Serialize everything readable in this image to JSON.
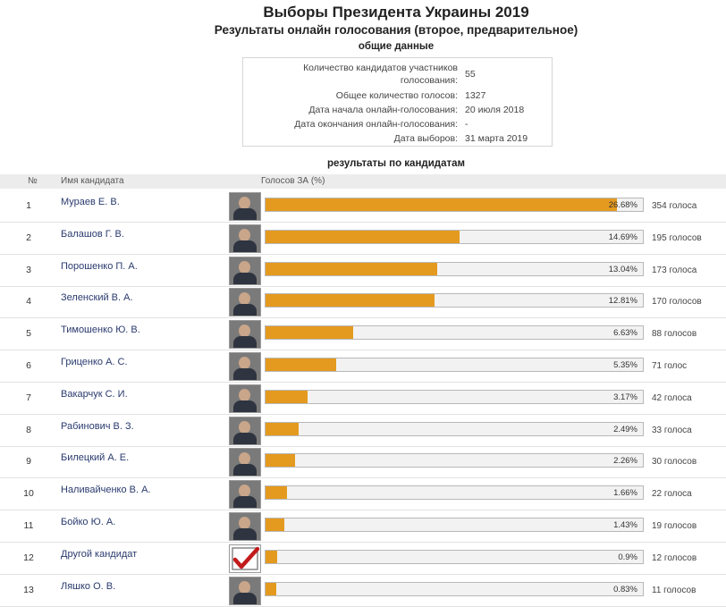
{
  "title": "Выборы Президента Украины 2019",
  "subtitle": "Результаты онлайн голосования (второе, предварительное)",
  "summary": {
    "heading": "общие данные",
    "rows": [
      {
        "label": "Количество кандидатов участников голосования:",
        "value": "55"
      },
      {
        "label": "Общее количество голосов:",
        "value": "1327"
      },
      {
        "label": "Дата начала онлайн-голосования:",
        "value": "20 июля 2018"
      },
      {
        "label": "Дата окончания онлайн-голосования:",
        "value": "-"
      },
      {
        "label": "Дата выборов:",
        "value": "31 марта 2019"
      }
    ]
  },
  "results": {
    "heading": "результаты по кандидатам",
    "columns": {
      "num": "№",
      "name": "Имя кандидата",
      "votes": "Голосов ЗА (%)"
    },
    "rows": [
      {
        "num": "1",
        "name": "Мураев Е. В.",
        "pct": 26.68,
        "pct_text": "26.68%",
        "votes": "354 голоса",
        "photo": "candidate-photo"
      },
      {
        "num": "2",
        "name": "Балашов Г. В.",
        "pct": 14.69,
        "pct_text": "14.69%",
        "votes": "195 голосов",
        "photo": "candidate-photo"
      },
      {
        "num": "3",
        "name": "Порошенко П. А.",
        "pct": 13.04,
        "pct_text": "13.04%",
        "votes": "173 голоса",
        "photo": "candidate-photo"
      },
      {
        "num": "4",
        "name": "Зеленский В. А.",
        "pct": 12.81,
        "pct_text": "12.81%",
        "votes": "170 голосов",
        "photo": "candidate-photo"
      },
      {
        "num": "5",
        "name": "Тимошенко Ю. В.",
        "pct": 6.63,
        "pct_text": "6.63%",
        "votes": "88 голосов",
        "photo": "candidate-photo"
      },
      {
        "num": "6",
        "name": "Гриценко А. С.",
        "pct": 5.35,
        "pct_text": "5.35%",
        "votes": "71 голос",
        "photo": "candidate-photo"
      },
      {
        "num": "7",
        "name": "Вакарчук С. И.",
        "pct": 3.17,
        "pct_text": "3.17%",
        "votes": "42 голоса",
        "photo": "candidate-photo"
      },
      {
        "num": "8",
        "name": "Рабинович В. З.",
        "pct": 2.49,
        "pct_text": "2.49%",
        "votes": "33 голоса",
        "photo": "candidate-photo"
      },
      {
        "num": "9",
        "name": "Билецкий А. Е.",
        "pct": 2.26,
        "pct_text": "2.26%",
        "votes": "30 голосов",
        "photo": "candidate-photo"
      },
      {
        "num": "10",
        "name": "Наливайченко В. А.",
        "pct": 1.66,
        "pct_text": "1.66%",
        "votes": "22 голоса",
        "photo": "candidate-photo"
      },
      {
        "num": "11",
        "name": "Бойко Ю. А.",
        "pct": 1.43,
        "pct_text": "1.43%",
        "votes": "19 голосов",
        "photo": "candidate-photo"
      },
      {
        "num": "12",
        "name": "Другой кандидат",
        "pct": 0.9,
        "pct_text": "0.9%",
        "votes": "12 голосов",
        "photo": "checkmark-icon"
      },
      {
        "num": "13",
        "name": "Ляшко О. В.",
        "pct": 0.83,
        "pct_text": "0.83%",
        "votes": "11 голосов",
        "photo": "candidate-photo"
      }
    ]
  },
  "colors": {
    "bar_fill": "#e49a1f",
    "bar_track": "#f2f2f2",
    "name_link": "#2a3a6e"
  }
}
